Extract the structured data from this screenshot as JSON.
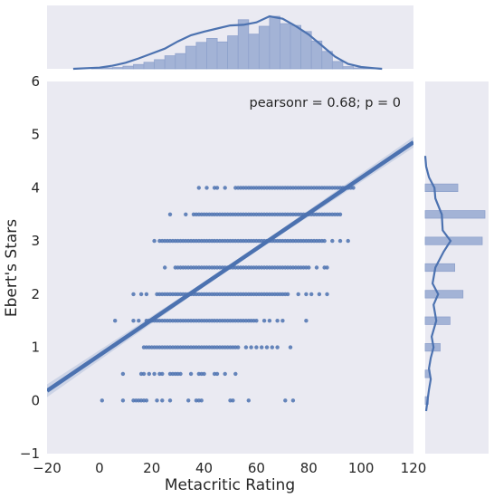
{
  "chart_data": {
    "type": "scatter",
    "subtype": "jointplot-regression",
    "xlabel": "Metacritic Rating",
    "ylabel": "Ebert's Stars",
    "xlim": [
      -20,
      120
    ],
    "ylim": [
      -1,
      6
    ],
    "xticks": [
      "−20",
      "0",
      "20",
      "40",
      "60",
      "80",
      "100",
      "120"
    ],
    "yticks": [
      "−1",
      "0",
      "1",
      "2",
      "3",
      "4",
      "5",
      "6"
    ],
    "annotation": "pearsonr = 0.68; p = 0",
    "grid": false,
    "colors": {
      "background": "#eaeaf2",
      "series": "#4c72b0",
      "bars": "#a3b3d6"
    },
    "regression": {
      "slope": 0.0334,
      "intercept": 0.85,
      "x_range": [
        -20,
        120
      ]
    },
    "stripes": [
      {
        "y": 0,
        "x_min": 1,
        "x_max": 74,
        "dense": [
          13,
          18
        ],
        "outliers": [
          1,
          9,
          13,
          16,
          22,
          24,
          27,
          34,
          37,
          38,
          39,
          50,
          51,
          57,
          71,
          74
        ]
      },
      {
        "y": 0.5,
        "x_min": 9,
        "x_max": 52,
        "dense": [
          27,
          30
        ],
        "outliers": [
          9,
          16,
          17,
          19,
          21,
          23,
          24,
          30,
          31,
          35,
          38,
          39,
          40,
          44,
          45,
          48,
          52
        ]
      },
      {
        "y": 1,
        "x_min": 17,
        "x_max": 73,
        "dense": [
          17,
          53
        ],
        "outliers": [
          56,
          58,
          60,
          62,
          64,
          66,
          68,
          73
        ]
      },
      {
        "y": 1.5,
        "x_min": 6,
        "x_max": 79,
        "dense": [
          18,
          60
        ],
        "outliers": [
          6,
          13,
          15,
          63,
          65,
          68,
          70,
          79
        ]
      },
      {
        "y": 2,
        "x_min": 13,
        "x_max": 87,
        "dense": [
          22,
          72
        ],
        "outliers": [
          13,
          16,
          18,
          76,
          79,
          81,
          84,
          87
        ]
      },
      {
        "y": 2.5,
        "x_min": 25,
        "x_max": 87,
        "dense": [
          29,
          80
        ],
        "outliers": [
          25,
          83,
          86,
          87
        ]
      },
      {
        "y": 3,
        "x_min": 21,
        "x_max": 95,
        "dense": [
          23,
          86
        ],
        "outliers": [
          21,
          89,
          92,
          95
        ]
      },
      {
        "y": 3.5,
        "x_min": 27,
        "x_max": 92,
        "dense": [
          36,
          92
        ],
        "outliers": [
          27,
          33
        ]
      },
      {
        "y": 4,
        "x_min": 38,
        "x_max": 97,
        "dense": [
          52,
          97
        ],
        "outliers": [
          38,
          41,
          44,
          45,
          48
        ]
      }
    ],
    "marginal_x": {
      "bin_edges": [
        -3,
        1,
        5,
        9,
        13,
        17,
        21,
        25,
        29,
        33,
        37,
        41,
        45,
        49,
        53,
        57,
        61,
        65,
        69,
        73,
        77,
        81,
        85,
        89,
        93,
        97,
        101,
        105
      ],
      "counts": [
        1,
        2,
        3,
        6,
        10,
        15,
        21,
        30,
        35,
        52,
        61,
        70,
        62,
        76,
        113,
        80,
        98,
        121,
        104,
        100,
        86,
        64,
        40,
        17,
        5,
        2,
        1
      ],
      "kde_x": [
        -10,
        -5,
        0,
        5,
        10,
        15,
        20,
        25,
        30,
        35,
        40,
        45,
        50,
        55,
        60,
        65,
        70,
        75,
        80,
        85,
        90,
        95,
        100,
        105,
        108
      ],
      "kde_y": [
        0,
        0.01,
        0.02,
        0.05,
        0.1,
        0.17,
        0.25,
        0.33,
        0.45,
        0.55,
        0.61,
        0.66,
        0.71,
        0.72,
        0.76,
        0.86,
        0.82,
        0.7,
        0.56,
        0.38,
        0.2,
        0.08,
        0.03,
        0.01,
        0
      ]
    },
    "marginal_y": {
      "bars": [
        {
          "y": 0,
          "count": 8
        },
        {
          "y": 0.5,
          "count": 12
        },
        {
          "y": 1,
          "count": 38
        },
        {
          "y": 1.5,
          "count": 63
        },
        {
          "y": 2,
          "count": 96
        },
        {
          "y": 2.5,
          "count": 75
        },
        {
          "y": 3,
          "count": 145
        },
        {
          "y": 3.5,
          "count": 152
        },
        {
          "y": 4,
          "count": 83
        }
      ],
      "kde_y": [
        -0.2,
        0,
        0.2,
        0.4,
        0.5,
        0.6,
        0.8,
        1.0,
        1.2,
        1.5,
        1.8,
        2.0,
        2.2,
        2.5,
        2.8,
        3.0,
        3.2,
        3.5,
        3.8,
        4.0,
        4.2,
        4.4,
        4.6
      ],
      "kde_d": [
        0.02,
        0.05,
        0.08,
        0.12,
        0.1,
        0.08,
        0.12,
        0.18,
        0.14,
        0.24,
        0.18,
        0.28,
        0.16,
        0.22,
        0.4,
        0.55,
        0.38,
        0.36,
        0.22,
        0.2,
        0.08,
        0.02,
        0
      ]
    }
  }
}
